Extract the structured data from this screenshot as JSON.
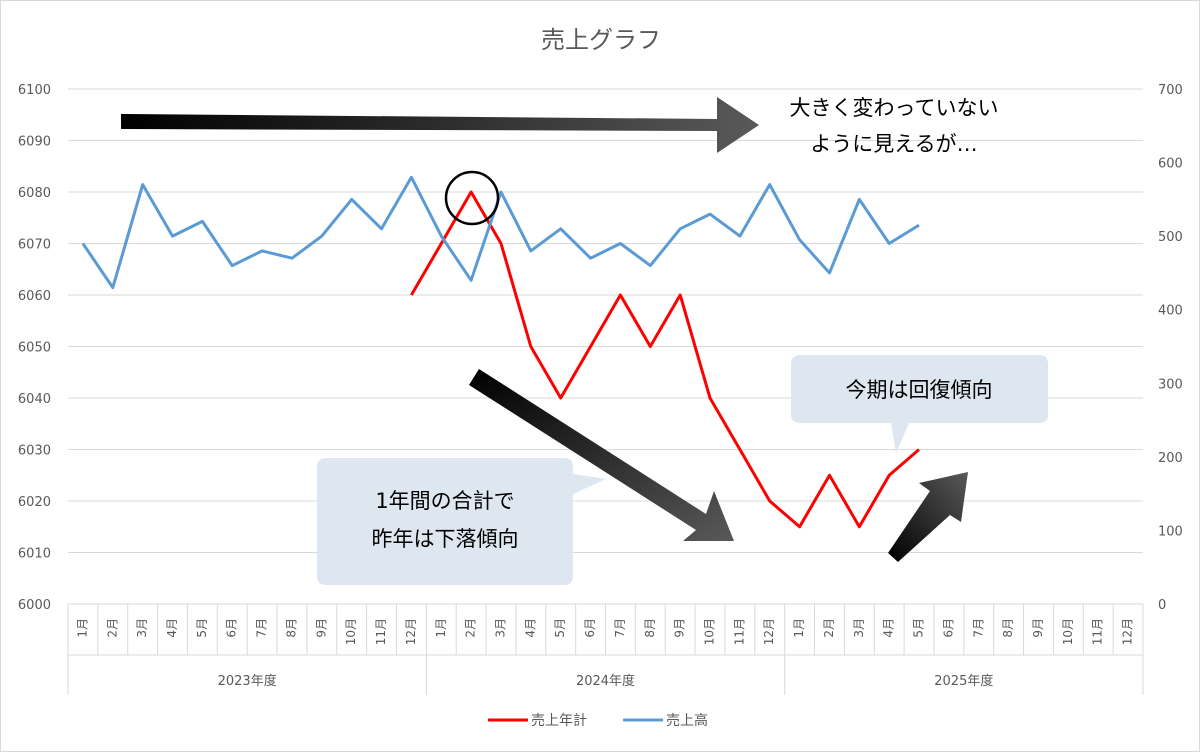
{
  "chart_data": {
    "type": "line",
    "title": "売上グラフ",
    "xlabel": "",
    "ylabel": "",
    "left_axis": {
      "ylim": [
        6000,
        6100
      ],
      "ticks": [
        6000,
        6010,
        6020,
        6030,
        6040,
        6050,
        6060,
        6070,
        6080,
        6090,
        6100
      ]
    },
    "right_axis": {
      "ylim": [
        0,
        700
      ],
      "ticks": [
        0,
        100,
        200,
        300,
        400,
        500,
        600,
        700
      ]
    },
    "grid": true,
    "legend_position": "bottom",
    "months": [
      "1月",
      "2月",
      "3月",
      "4月",
      "5月",
      "6月",
      "7月",
      "8月",
      "9月",
      "10月",
      "11月",
      "12月"
    ],
    "years": [
      "2023年度",
      "2024年度",
      "2025年度"
    ],
    "series": [
      {
        "name": "売上年計",
        "axis": "left",
        "color": "#ff0000",
        "values": [
          null,
          null,
          null,
          null,
          null,
          null,
          null,
          null,
          null,
          null,
          null,
          6060,
          6070,
          6080,
          6070,
          6050,
          6040,
          6050,
          6060,
          6050,
          6060,
          6040,
          6030,
          6020,
          6015,
          6025,
          6015,
          6025,
          6030,
          null,
          null,
          null,
          null,
          null,
          null,
          null
        ]
      },
      {
        "name": "売上高",
        "axis": "right",
        "color": "#5b9bd5",
        "values": [
          490,
          430,
          570,
          500,
          520,
          460,
          480,
          470,
          500,
          550,
          510,
          580,
          500,
          440,
          560,
          480,
          510,
          470,
          490,
          460,
          510,
          530,
          500,
          570,
          495,
          450,
          550,
          490,
          515,
          null,
          null,
          null,
          null,
          null,
          null,
          null
        ]
      }
    ],
    "annotations": {
      "top_arrow_text": [
        "大きく変わっていない",
        "ように見えるが…"
      ],
      "down_callout": [
        "1年間の合計で",
        "昨年は下落傾向"
      ],
      "up_callout": [
        "今期は回復傾向"
      ]
    }
  }
}
